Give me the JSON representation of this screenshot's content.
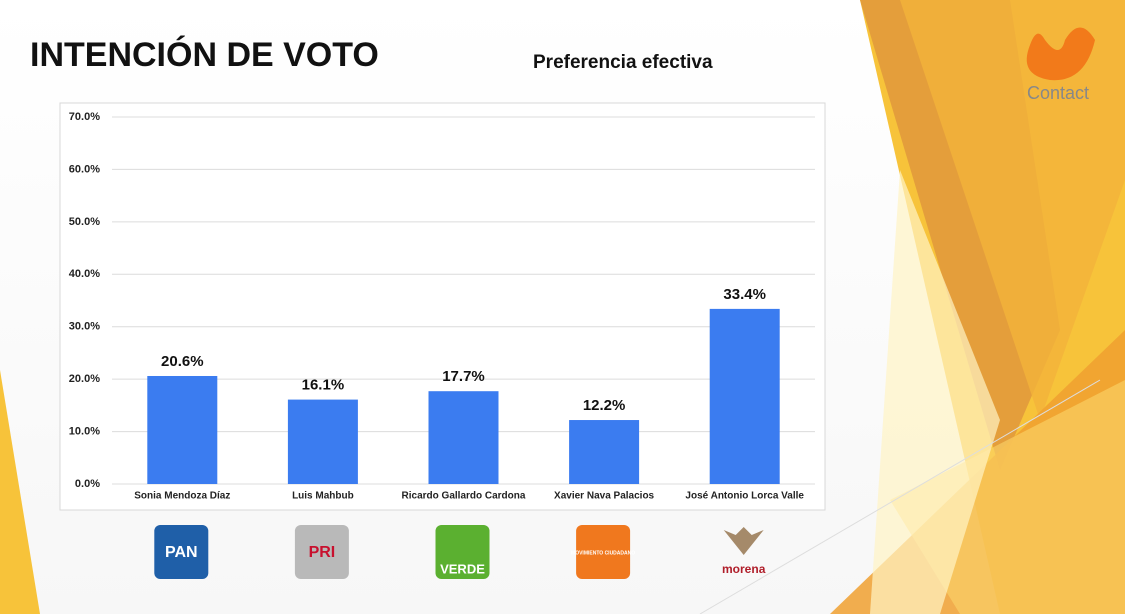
{
  "chart_data": {
    "type": "bar",
    "title": "INTENCIÓN DE VOTO",
    "subtitle": "Preferencia efectiva",
    "categories": [
      "Sonia Mendoza Díaz",
      "Luis Mahbub",
      "Ricardo Gallardo Cardona",
      "Xavier Nava Palacios",
      "José Antonio Lorca Valle"
    ],
    "values": [
      20.6,
      16.1,
      17.7,
      12.2,
      33.4
    ],
    "value_labels": [
      "20.6%",
      "16.1%",
      "17.7%",
      "12.2%",
      "33.4%"
    ],
    "color": "#3b7cf0",
    "ylim": [
      0,
      70
    ],
    "yticks": [
      {
        "value": 0,
        "label": "0.0%"
      },
      {
        "value": 10,
        "label": "10.0%"
      },
      {
        "value": 20,
        "label": "20.0%"
      },
      {
        "value": 30,
        "label": "30.0%"
      },
      {
        "value": 40,
        "label": "40.0%"
      },
      {
        "value": 50,
        "label": "50.0%"
      },
      {
        "value": 60,
        "label": "60.0%"
      },
      {
        "value": 70,
        "label": "70.0%"
      }
    ],
    "grid": true
  },
  "logos": [
    "PAN",
    "PRI",
    "VERDE",
    "MOVIMIENTO CIUDADANO",
    "morena"
  ],
  "brand": "Contact"
}
